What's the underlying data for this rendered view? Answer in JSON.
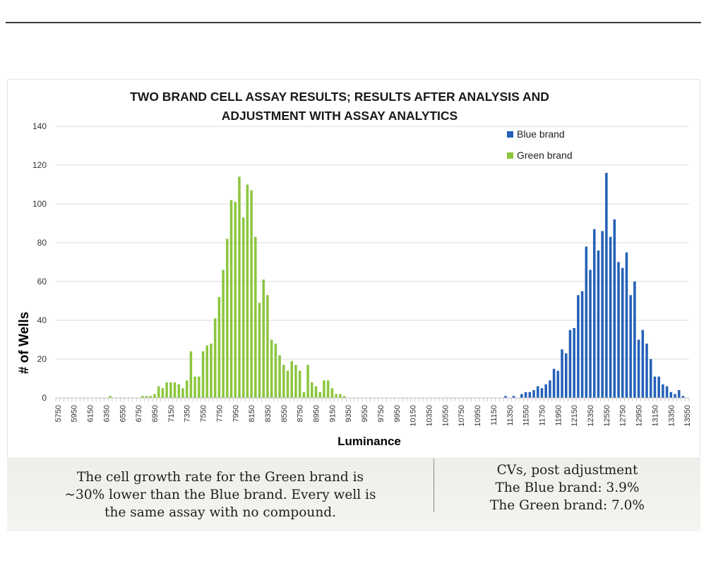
{
  "chart_data": {
    "type": "bar",
    "title_lines": [
      "TWO BRAND CELL ASSAY RESULTS; RESULTS AFTER ANALYSIS AND",
      "ADJUSTMENT WITH ASSAY ANALYTICS"
    ],
    "xlabel": "Luminance",
    "ylabel": "# of Wells",
    "ylim": [
      0,
      140
    ],
    "y_ticks": [
      0,
      20,
      40,
      60,
      80,
      100,
      120,
      140
    ],
    "x_start": 5750,
    "x_step": 50,
    "x_tick_labels": [
      "5750",
      "5950",
      "6150",
      "6350",
      "6550",
      "6750",
      "6950",
      "7150",
      "7350",
      "7550",
      "7750",
      "7950",
      "8150",
      "8350",
      "8550",
      "8750",
      "8950",
      "9150",
      "9350",
      "9550",
      "9750",
      "9950",
      "10150",
      "10350",
      "10550",
      "10750",
      "10950",
      "11150",
      "11350",
      "11550",
      "11750",
      "11950",
      "12150",
      "12350",
      "12550",
      "12750",
      "12950",
      "13150",
      "13350",
      "13550"
    ],
    "grid": "horizontal",
    "legend_position": "top-right",
    "series": [
      {
        "name": "Blue brand",
        "color": "#2460b8",
        "x": [
          11300,
          11400,
          11500,
          11550,
          11600,
          11650,
          11700,
          11750,
          11800,
          11850,
          11900,
          11950,
          12000,
          12050,
          12100,
          12150,
          12200,
          12250,
          12300,
          12350,
          12400,
          12450,
          12500,
          12550,
          12600,
          12650,
          12700,
          12750,
          12800,
          12850,
          12900,
          12950,
          13000,
          13050,
          13100,
          13150,
          13200,
          13250,
          13300,
          13350,
          13400,
          13450,
          13500
        ],
        "values": [
          1,
          1,
          2,
          3,
          3,
          4,
          6,
          5,
          7,
          9,
          15,
          14,
          25,
          23,
          35,
          36,
          53,
          55,
          78,
          66,
          87,
          76,
          86,
          116,
          83,
          92,
          70,
          67,
          75,
          53,
          60,
          30,
          35,
          28,
          20,
          11,
          11,
          7,
          6,
          3,
          2,
          4,
          1
        ]
      },
      {
        "name": "Green brand",
        "color": "#8cc63f",
        "x": [
          6400,
          6800,
          6850,
          6900,
          6950,
          7000,
          7050,
          7100,
          7150,
          7200,
          7250,
          7300,
          7350,
          7400,
          7450,
          7500,
          7550,
          7600,
          7650,
          7700,
          7750,
          7800,
          7850,
          7900,
          7950,
          8000,
          8050,
          8100,
          8150,
          8200,
          8250,
          8300,
          8350,
          8400,
          8450,
          8500,
          8550,
          8600,
          8650,
          8700,
          8750,
          8800,
          8850,
          8900,
          8950,
          9000,
          9050,
          9100,
          9150,
          9200,
          9250,
          9300
        ],
        "values": [
          1,
          1,
          1,
          1,
          2,
          6,
          5,
          8,
          8,
          8,
          7,
          5,
          9,
          24,
          11,
          11,
          24,
          27,
          28,
          41,
          52,
          66,
          82,
          102,
          101,
          114,
          93,
          110,
          107,
          83,
          49,
          61,
          53,
          30,
          28,
          22,
          17,
          14,
          19,
          17,
          14,
          3,
          17,
          8,
          6,
          3,
          9,
          9,
          5,
          2,
          2,
          1
        ]
      }
    ]
  },
  "caption": {
    "left_lines": [
      "The cell growth rate for the Green brand is",
      "~30% lower than the  Blue brand. Every well is",
      "the same assay with no compound."
    ],
    "right_lines": [
      "CVs, post adjustment",
      "The Blue brand: 3.9%",
      "The Green brand: 7.0%"
    ]
  }
}
